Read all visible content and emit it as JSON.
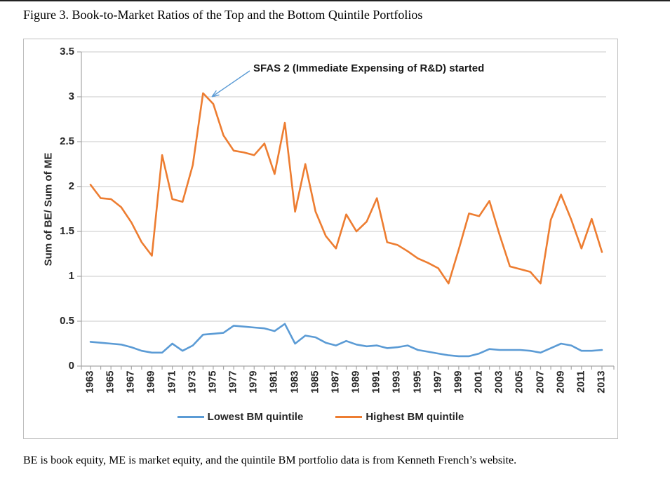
{
  "figure_title": "Figure 3. Book-to-Market Ratios of the Top and the Bottom Quintile Portfolios",
  "caption": "BE is book equity, ME is market equity, and the quintile BM portfolio data is from Kenneth French’s website.",
  "colors": {
    "lowest_line": "#5B9BD5",
    "highest_line": "#ED7D31",
    "gridline": "#c9c9c9",
    "axis": "#a6a6a6",
    "arrow": "#5B9BD5"
  },
  "chart_data": {
    "type": "line",
    "title": "",
    "ylabel": "Sum of BE/ Sum of ME",
    "xlabel": "",
    "ylim": [
      0,
      3.5
    ],
    "grid": "horizontal",
    "legend_position": "bottom",
    "annotation": "SFAS 2 (Immediate Expensing of R&D) started",
    "annotation_points_at_year": 1975,
    "y_tick_labels": [
      "0",
      "0.5",
      "1",
      "1.5",
      "2",
      "2.5",
      "3",
      "3.5"
    ],
    "x_tick_label_step": 2,
    "x": [
      1963,
      1964,
      1965,
      1966,
      1967,
      1968,
      1969,
      1970,
      1971,
      1972,
      1973,
      1974,
      1975,
      1976,
      1977,
      1978,
      1979,
      1980,
      1981,
      1982,
      1983,
      1984,
      1985,
      1986,
      1987,
      1988,
      1989,
      1990,
      1991,
      1992,
      1993,
      1994,
      1995,
      1996,
      1997,
      1998,
      1999,
      2000,
      2001,
      2002,
      2003,
      2004,
      2005,
      2006,
      2007,
      2008,
      2009,
      2010,
      2011,
      2012,
      2013
    ],
    "series": [
      {
        "name": "Lowest BM quintile",
        "color": "#5B9BD5",
        "values": [
          0.27,
          0.26,
          0.25,
          0.24,
          0.21,
          0.17,
          0.15,
          0.15,
          0.25,
          0.17,
          0.23,
          0.35,
          0.36,
          0.37,
          0.45,
          0.44,
          0.43,
          0.42,
          0.39,
          0.47,
          0.25,
          0.34,
          0.32,
          0.26,
          0.23,
          0.28,
          0.24,
          0.22,
          0.23,
          0.2,
          0.21,
          0.23,
          0.18,
          0.16,
          0.14,
          0.12,
          0.11,
          0.11,
          0.14,
          0.19,
          0.18,
          0.18,
          0.18,
          0.17,
          0.15,
          0.2,
          0.25,
          0.23,
          0.17,
          0.17,
          0.18
        ]
      },
      {
        "name": "Highest BM quintile",
        "color": "#ED7D31",
        "values": [
          2.02,
          1.87,
          1.86,
          1.77,
          1.6,
          1.38,
          1.23,
          2.35,
          1.86,
          1.83,
          2.24,
          3.04,
          2.92,
          2.57,
          2.4,
          2.38,
          2.35,
          2.48,
          2.14,
          2.71,
          1.72,
          2.25,
          1.72,
          1.45,
          1.31,
          1.69,
          1.5,
          1.61,
          1.87,
          1.38,
          1.35,
          1.28,
          1.2,
          1.15,
          1.09,
          0.92,
          1.3,
          1.7,
          1.67,
          1.84,
          1.46,
          1.11,
          1.08,
          1.05,
          0.92,
          1.63,
          1.91,
          1.63,
          1.31,
          1.64,
          1.27
        ]
      }
    ]
  }
}
